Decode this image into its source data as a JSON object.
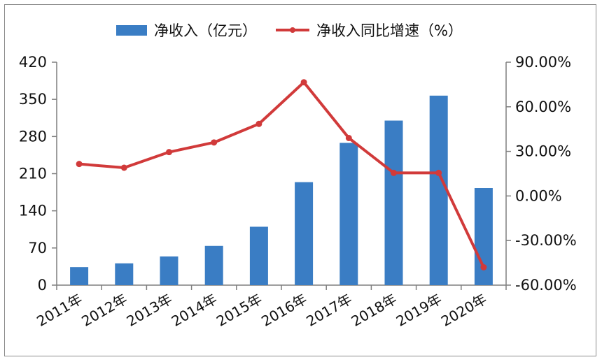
{
  "chart_data": {
    "type": "bar",
    "categories": [
      "2011年",
      "2012年",
      "2013年",
      "2014年",
      "2015年",
      "2016年",
      "2017年",
      "2018年",
      "2019年",
      "2020年"
    ],
    "series": [
      {
        "name": "净收入（亿元）",
        "type": "bar",
        "axis": "left",
        "values": [
          34,
          41,
          54,
          74,
          110,
          194,
          268,
          310,
          357,
          183
        ]
      },
      {
        "name": "净收入同比增速（%）",
        "type": "line",
        "axis": "right",
        "values": [
          21.5,
          19.0,
          29.5,
          36.0,
          48.5,
          76.5,
          39.0,
          15.5,
          15.5,
          -48.0
        ]
      }
    ],
    "y_left": {
      "min": 0,
      "max": 420,
      "ticks": [
        0,
        70,
        140,
        210,
        280,
        350,
        420
      ],
      "tick_labels": [
        "0",
        "70",
        "140",
        "210",
        "280",
        "350",
        "420"
      ]
    },
    "y_right": {
      "min": -60,
      "max": 90,
      "ticks": [
        -60,
        -30,
        0,
        30,
        60,
        90
      ],
      "tick_labels": [
        "-60.00%",
        "-30.00%",
        "0.00%",
        "30.00%",
        "60.00%",
        "90.00%"
      ]
    },
    "legend_position": "top",
    "grid": false
  },
  "colors": {
    "bar": "#3a7dc4",
    "line": "#d13a3a",
    "axis": "#7f7f7f"
  }
}
